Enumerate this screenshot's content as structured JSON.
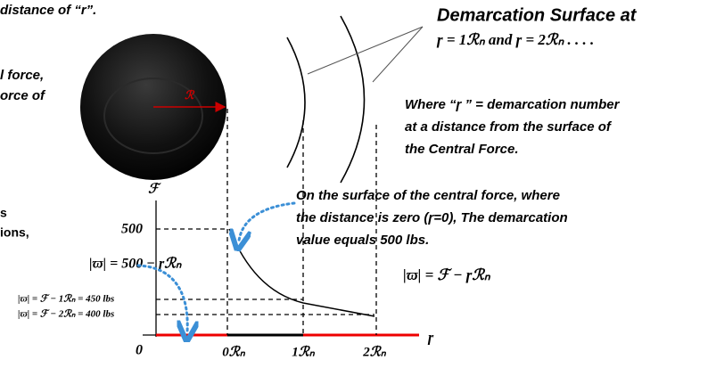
{
  "left_fragments": [
    "distance of “r”.",
    "l force,",
    "orce of",
    "s",
    "ions,"
  ],
  "sphere_label": "ℛ",
  "heading": "Demarcation Surface at",
  "heading_formula": "ɼ = 1ℛₙ and ɼ = 2ℛₙ . . . .",
  "definition_lines": [
    "Where “ɼ ” =  demarcation number",
    "at a distance from the surface of",
    "the Central Force."
  ],
  "note_lines": [
    "On the surface of the central force, where",
    "the distance is zero (ɼ=0), The demarcation",
    "value equals 500 lbs."
  ],
  "formula_right": "|ϖ| = ℱ − ɼℛₙ",
  "formula_left": "|ϖ| = 500 − ɼℛₙ",
  "level_labels": [
    "|ϖ| = ℱ − 1ℛₙ = 450 lbs",
    "|ϖ| = ℱ − 2ℛₙ = 400 lbs"
  ],
  "axis": {
    "y_title": "ℱ",
    "y_value": "500",
    "origin": "0",
    "x_title": "ɼ",
    "x_ticks": [
      "0ℛₙ",
      "1ℛₙ",
      "2ℛₙ"
    ]
  }
}
